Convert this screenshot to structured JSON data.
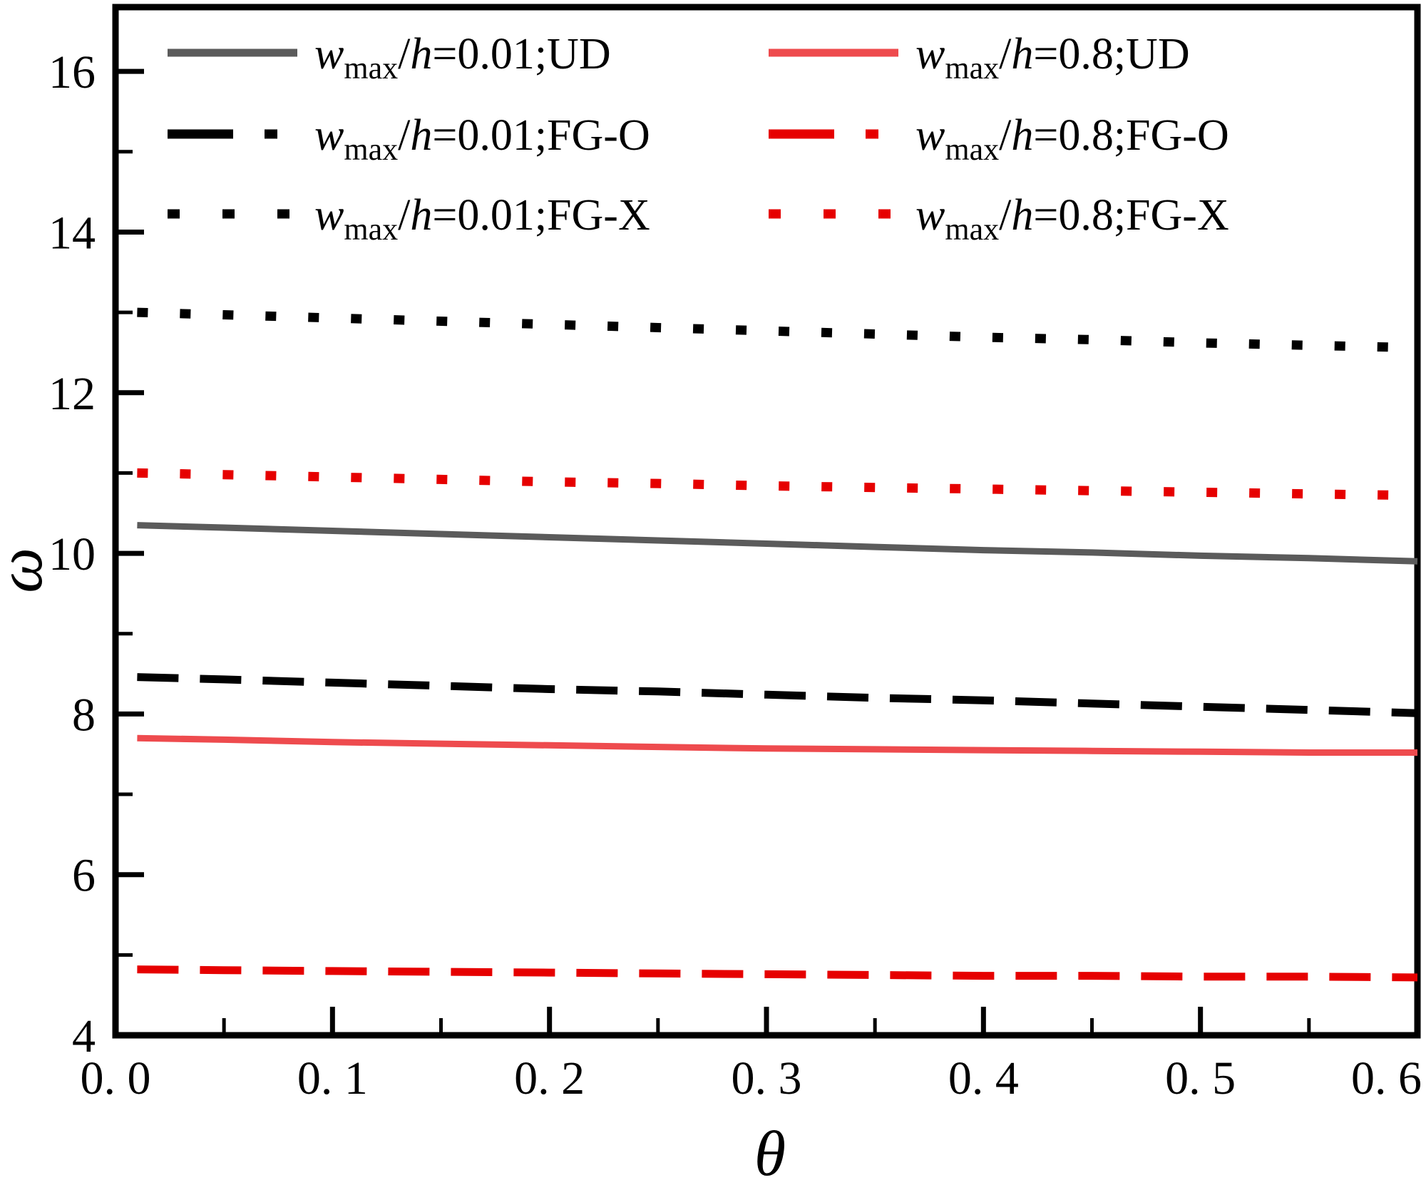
{
  "chart_data": {
    "type": "line",
    "title": "",
    "xlabel": "θ",
    "ylabel": "ω",
    "xlim": [
      0,
      0.6
    ],
    "ylim": [
      4,
      16.8
    ],
    "grid": false,
    "legend_position": "top-left inside plot, two columns, three rows",
    "xtick_labels": [
      "0. 0",
      "0. 1",
      "0. 2",
      "0. 3",
      "0. 4",
      "0. 5",
      "0. 6"
    ],
    "x_major_ticks": [
      0,
      0.1,
      0.2,
      0.3,
      0.4,
      0.5,
      0.6
    ],
    "x_minor_ticks": [
      0.05,
      0.15,
      0.25,
      0.35,
      0.45,
      0.55
    ],
    "ytick_labels": [
      "4",
      "6",
      "8",
      "10",
      "12",
      "14",
      "16"
    ],
    "y_major_ticks": [
      4,
      6,
      8,
      10,
      12,
      14,
      16
    ],
    "y_minor_ticks": [
      5,
      7,
      9,
      11,
      13,
      15
    ],
    "x": [
      0.01,
      0.05,
      0.1,
      0.15,
      0.2,
      0.25,
      0.3,
      0.35,
      0.4,
      0.45,
      0.5,
      0.55,
      0.6
    ],
    "series": [
      {
        "name": "w_max/h=0.01;UD",
        "line_style": "solid",
        "color": "#5b5b5b",
        "label_parts": {
          "var1": "w",
          "sub": "max",
          "sep": "/",
          "var2": "h",
          "rest": "=0.01;UD"
        },
        "values": [
          10.35,
          10.32,
          10.28,
          10.24,
          10.2,
          10.16,
          10.12,
          10.08,
          10.04,
          10.01,
          9.97,
          9.94,
          9.9
        ]
      },
      {
        "name": "w_max/h=0.01;FG-O",
        "line_style": "dashed",
        "color": "#000000",
        "label_parts": {
          "var1": "w",
          "sub": "max",
          "sep": "/",
          "var2": "h",
          "rest": "=0.01;FG-O"
        },
        "values": [
          8.46,
          8.43,
          8.39,
          8.35,
          8.31,
          8.28,
          8.24,
          8.2,
          8.17,
          8.13,
          8.09,
          8.05,
          8.01
        ]
      },
      {
        "name": "w_max/h=0.01;FG-X",
        "line_style": "dotted",
        "color": "#000000",
        "label_parts": {
          "var1": "w",
          "sub": "max",
          "sep": "/",
          "var2": "h",
          "rest": "=0.01;FG-X"
        },
        "values": [
          13.0,
          12.97,
          12.93,
          12.89,
          12.85,
          12.81,
          12.77,
          12.73,
          12.69,
          12.66,
          12.62,
          12.59,
          12.56
        ]
      },
      {
        "name": "w_max/h=0.8;UD",
        "line_style": "solid",
        "color": "#ee4b4e",
        "label_parts": {
          "var1": "w",
          "sub": "max",
          "sep": "/",
          "var2": "h",
          "rest": "=0.8;UD"
        },
        "values": [
          7.7,
          7.68,
          7.65,
          7.63,
          7.61,
          7.59,
          7.57,
          7.56,
          7.55,
          7.54,
          7.53,
          7.52,
          7.52
        ]
      },
      {
        "name": "w_max/h=0.8;FG-O",
        "line_style": "dashed",
        "color": "#e60000",
        "label_parts": {
          "var1": "w",
          "sub": "max",
          "sep": "/",
          "var2": "h",
          "rest": "=0.8;FG-O"
        },
        "values": [
          4.82,
          4.81,
          4.8,
          4.79,
          4.78,
          4.77,
          4.76,
          4.75,
          4.74,
          4.74,
          4.73,
          4.73,
          4.72
        ]
      },
      {
        "name": "w_max/h=0.8;FG-X",
        "line_style": "dotted",
        "color": "#e60000",
        "label_parts": {
          "var1": "w",
          "sub": "max",
          "sep": "/",
          "var2": "h",
          "rest": "=0.8;FG-X"
        },
        "values": [
          11.0,
          10.98,
          10.95,
          10.92,
          10.89,
          10.87,
          10.84,
          10.82,
          10.8,
          10.78,
          10.76,
          10.74,
          10.72
        ]
      }
    ],
    "legend_layout": {
      "rows": [
        [
          0,
          3
        ],
        [
          1,
          4
        ],
        [
          2,
          5
        ]
      ]
    },
    "colors": {
      "axis": "#000000",
      "gray_series": "#5b5b5b",
      "black_series": "#000000",
      "light_red_series": "#ee4b4e",
      "red_series": "#e60000"
    }
  }
}
